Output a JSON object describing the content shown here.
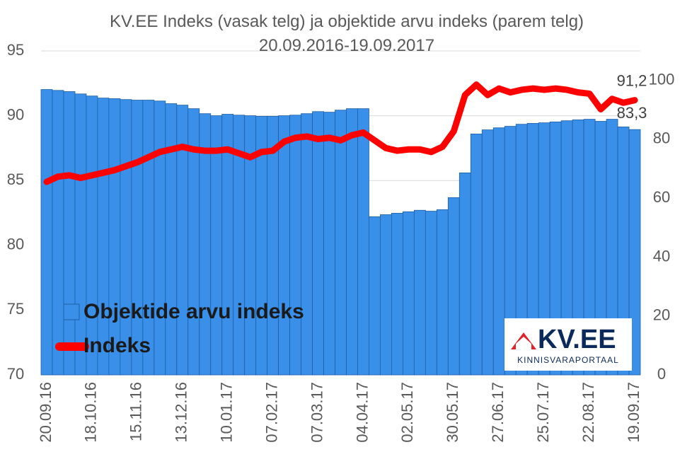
{
  "chart_data": {
    "type": "combo",
    "title": "KV.EE Indeks (vasak telg) ja objektide arvu indeks (parem telg) 20.09.2016-19.09.2017",
    "categories": [
      "20.09.16",
      null,
      null,
      null,
      "18.10.16",
      null,
      null,
      null,
      "15.11.16",
      null,
      null,
      null,
      "13.12.16",
      null,
      null,
      null,
      "10.01.17",
      null,
      null,
      null,
      "07.02.17",
      null,
      null,
      null,
      "07.03.17",
      null,
      null,
      null,
      "04.04.17",
      null,
      null,
      null,
      "02.05.17",
      null,
      null,
      null,
      "30.05.17",
      null,
      null,
      null,
      "27.06.17",
      null,
      null,
      null,
      "25.07.17",
      null,
      null,
      null,
      "22.08.17",
      null,
      null,
      null,
      "19.09.17"
    ],
    "series": [
      {
        "name": "Objektide arvu indeks",
        "type": "bar",
        "axis": "y2",
        "color": "#3a8fe8",
        "values": [
          96.9,
          96.6,
          96.2,
          95.4,
          94.7,
          94.0,
          93.8,
          93.5,
          93.3,
          93.3,
          93.0,
          92.1,
          91.6,
          90.4,
          88.7,
          88.0,
          88.5,
          88.2,
          88.0,
          87.8,
          87.8,
          88.0,
          88.2,
          88.7,
          89.4,
          89.2,
          89.9,
          90.4,
          90.4,
          53.7,
          54.4,
          54.9,
          55.4,
          55.9,
          55.6,
          56.1,
          60.2,
          68.6,
          81.8,
          83.2,
          83.9,
          84.4,
          85.1,
          85.4,
          85.6,
          85.9,
          86.3,
          86.6,
          86.8,
          86.1,
          86.8,
          84.2,
          83.3
        ],
        "value_labels": [
          null,
          null,
          null,
          null,
          null,
          null,
          null,
          null,
          null,
          null,
          null,
          null,
          null,
          null,
          null,
          null,
          null,
          null,
          null,
          null,
          null,
          null,
          null,
          null,
          null,
          null,
          null,
          null,
          null,
          null,
          null,
          null,
          null,
          null,
          null,
          null,
          null,
          null,
          null,
          null,
          null,
          null,
          null,
          null,
          null,
          null,
          null,
          null,
          null,
          null,
          null,
          null,
          "83,3"
        ]
      },
      {
        "name": "Indeks",
        "type": "line",
        "color": "#ff0000",
        "values": [
          84.9,
          85.3,
          85.4,
          85.2,
          85.4,
          85.6,
          85.8,
          86.1,
          86.4,
          86.8,
          87.2,
          87.4,
          87.6,
          87.4,
          87.3,
          87.3,
          87.4,
          87.1,
          86.8,
          87.2,
          87.3,
          88.0,
          88.3,
          88.4,
          88.2,
          88.3,
          88.1,
          88.5,
          88.7,
          88.1,
          87.5,
          87.3,
          87.4,
          87.4,
          87.2,
          87.6,
          88.8,
          91.6,
          92.4,
          91.6,
          92.1,
          91.8,
          92.0,
          92.1,
          92.0,
          92.1,
          92.0,
          91.8,
          91.7,
          90.5,
          91.3,
          91.0,
          91.2
        ],
        "value_labels": [
          null,
          null,
          null,
          null,
          null,
          null,
          null,
          null,
          null,
          null,
          null,
          null,
          null,
          null,
          null,
          null,
          null,
          null,
          null,
          null,
          null,
          null,
          null,
          null,
          null,
          null,
          null,
          null,
          null,
          null,
          null,
          null,
          null,
          null,
          null,
          null,
          null,
          null,
          null,
          null,
          null,
          null,
          null,
          null,
          null,
          null,
          null,
          null,
          null,
          null,
          null,
          null,
          "91,2"
        ]
      }
    ],
    "ylim": [
      70,
      95
    ],
    "yticks": [
      70,
      75,
      80,
      85,
      90,
      95
    ],
    "y2lim": [
      0,
      110
    ],
    "y2ticks": [
      0,
      20,
      40,
      60,
      80,
      100
    ],
    "grid": true,
    "legend": "bottom-left"
  },
  "logo": {
    "name": "KV.EE",
    "tagline": "KINNISVARAPORTAAL"
  }
}
